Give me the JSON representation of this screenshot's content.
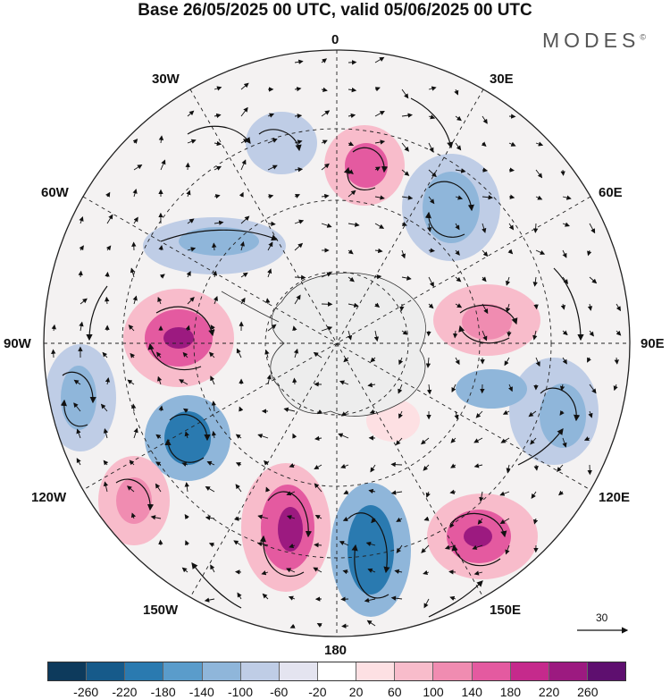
{
  "title": "Base 26/05/2025 00 UTC, valid 05/06/2025 00 UTC",
  "brand": "MODES",
  "brand_mark": "©",
  "labels": {
    "top": "0",
    "bottom": "180",
    "left": "90W",
    "right": "90E",
    "w30": "30W",
    "e30": "30E",
    "w60": "60W",
    "e60": "60E",
    "w120": "120W",
    "e120": "120E",
    "w150": "150W",
    "e150": "150E"
  },
  "vector_reference": "30",
  "colorbar": {
    "colors": [
      "#0d3a5c",
      "#165a8a",
      "#2a7ab0",
      "#5a9ccb",
      "#8fb6da",
      "#bfcde6",
      "#e4e4f0",
      "#ffffff",
      "#fde0e3",
      "#f8bccb",
      "#f08cb1",
      "#e45aa0",
      "#c52a8c",
      "#9c1a80",
      "#5e0f6f"
    ],
    "ticks": [
      "-260",
      "-220",
      "-180",
      "-140",
      "-100",
      "-60",
      "-20",
      "20",
      "60",
      "100",
      "140",
      "180",
      "220",
      "260"
    ]
  }
}
